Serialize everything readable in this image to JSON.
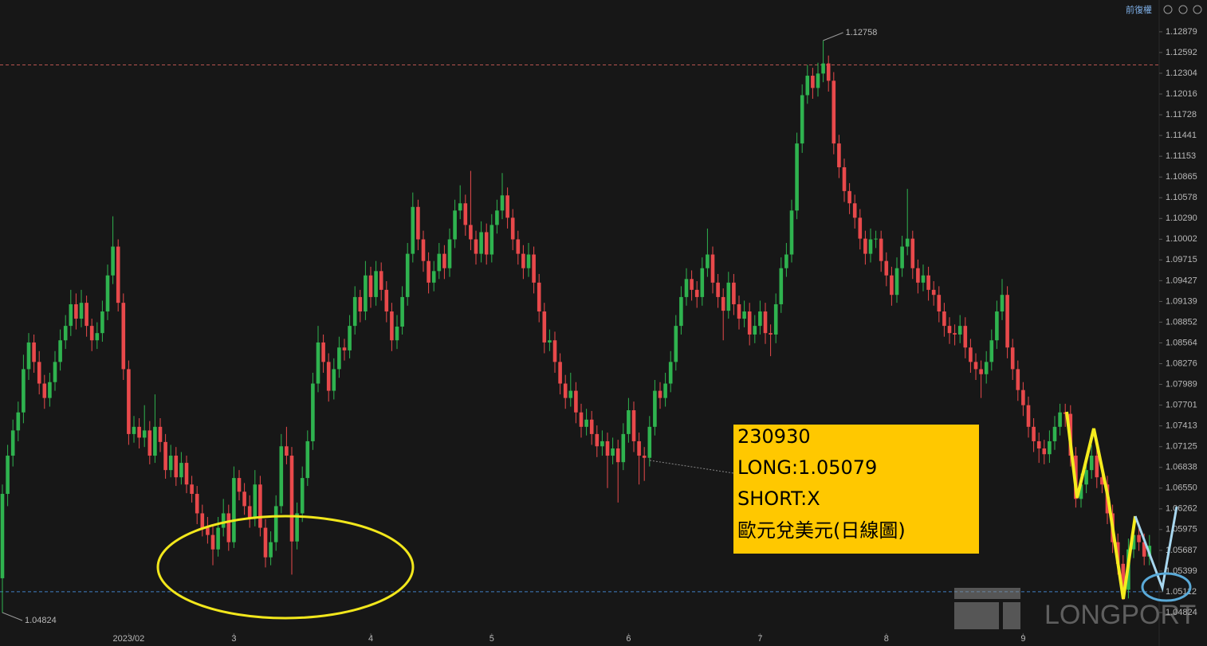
{
  "chart_data": {
    "type": "candlestick",
    "toolbar_label": "前復權",
    "ylim": [
      1.0436,
      1.1332
    ],
    "yticks": [
      1.12879,
      1.12592,
      1.12304,
      1.12016,
      1.11728,
      1.11441,
      1.11153,
      1.10865,
      1.10578,
      {
        "value": 1.1029,
        "label": "1.10290"
      },
      1.10002,
      1.09715,
      1.09427,
      1.09139,
      1.08852,
      1.08564,
      1.08276,
      1.07989,
      1.07701,
      1.07413,
      1.07125,
      1.06838,
      {
        "value": 1.0655,
        "label": "1.06550"
      },
      1.06262,
      1.05975,
      1.05687,
      1.05399,
      1.05112,
      1.04824
    ],
    "x_labels": [
      {
        "index": 24,
        "label": "2023/02"
      },
      {
        "index": 44,
        "label": "3"
      },
      {
        "index": 70,
        "label": "4"
      },
      {
        "index": 93,
        "label": "5"
      },
      {
        "index": 119,
        "label": "6"
      },
      {
        "index": 144,
        "label": "7"
      },
      {
        "index": 168,
        "label": "8"
      },
      {
        "index": 194,
        "label": "9"
      }
    ],
    "up_color": "#2fb34f",
    "down_color": "#e8494b",
    "hlines": [
      {
        "value": 1.1242,
        "color": "#b85450"
      },
      {
        "value": 1.05112,
        "color": "#3f7fc4"
      }
    ],
    "extremes": [
      {
        "index": 156,
        "value": 1.12758
      },
      {
        "index": 0,
        "value": 1.04824
      }
    ],
    "note": [
      "230930",
      "LONG:1.05079",
      "SHORT:X",
      "歐元兌美元(日線圖)"
    ],
    "watermark": "LONGPORT",
    "candles": [
      [
        1.053,
        1.066,
        1.0482,
        1.0647
      ],
      [
        1.0647,
        1.0715,
        1.063,
        1.07
      ],
      [
        1.07,
        1.075,
        1.0685,
        1.0735
      ],
      [
        1.0735,
        1.0775,
        1.072,
        1.076
      ],
      [
        1.076,
        1.084,
        1.0745,
        1.082
      ],
      [
        1.082,
        1.087,
        1.0805,
        1.0857
      ],
      [
        1.0857,
        1.0868,
        1.0815,
        1.083
      ],
      [
        1.083,
        1.0845,
        1.0785,
        1.08
      ],
      [
        1.08,
        1.0812,
        1.0765,
        1.078
      ],
      [
        1.078,
        1.0815,
        1.0768,
        1.0802
      ],
      [
        1.0802,
        1.0845,
        1.079,
        1.083
      ],
      [
        1.083,
        1.0875,
        1.0818,
        1.086
      ],
      [
        1.086,
        1.0895,
        1.0848,
        1.088
      ],
      [
        1.088,
        1.093,
        1.0866,
        1.091
      ],
      [
        1.091,
        1.0925,
        1.0875,
        1.089
      ],
      [
        1.089,
        1.093,
        1.0878,
        1.0912
      ],
      [
        1.0912,
        1.0922,
        1.0865,
        1.088
      ],
      [
        1.088,
        1.089,
        1.0845,
        1.086
      ],
      [
        1.086,
        1.0885,
        1.0848,
        1.087
      ],
      [
        1.087,
        1.0915,
        1.0858,
        1.09
      ],
      [
        1.09,
        1.0965,
        1.0888,
        1.095
      ],
      [
        1.095,
        1.1032,
        1.0938,
        1.099
      ],
      [
        1.099,
        1.1,
        1.09,
        1.0912
      ],
      [
        1.0912,
        1.0925,
        1.0805,
        1.082
      ],
      [
        1.082,
        1.0832,
        1.0715,
        1.073
      ],
      [
        1.073,
        1.0755,
        1.0718,
        1.074
      ],
      [
        1.074,
        1.0752,
        1.071,
        1.0725
      ],
      [
        1.0725,
        1.077,
        1.0712,
        1.0735
      ],
      [
        1.0735,
        1.0748,
        1.0688,
        1.07
      ],
      [
        1.07,
        1.0785,
        1.069,
        1.074
      ],
      [
        1.074,
        1.0752,
        1.0705,
        1.0719
      ],
      [
        1.0719,
        1.073,
        1.0668,
        1.068
      ],
      [
        1.068,
        1.0715,
        1.067,
        1.07
      ],
      [
        1.07,
        1.0712,
        1.0658,
        1.067
      ],
      [
        1.067,
        1.0705,
        1.066,
        1.069
      ],
      [
        1.069,
        1.07,
        1.0648,
        1.066
      ],
      [
        1.066,
        1.0672,
        1.0635,
        1.0647
      ],
      [
        1.0647,
        1.0658,
        1.0605,
        1.062
      ],
      [
        1.062,
        1.0632,
        1.0588,
        1.06
      ],
      [
        1.06,
        1.0615,
        1.0578,
        1.059
      ],
      [
        1.059,
        1.0602,
        1.0548,
        1.057
      ],
      [
        1.057,
        1.0615,
        1.056,
        1.06
      ],
      [
        1.06,
        1.064,
        1.0588,
        1.062
      ],
      [
        1.062,
        1.0632,
        1.0568,
        1.058
      ],
      [
        1.058,
        1.0685,
        1.0572,
        1.0669
      ],
      [
        1.0669,
        1.068,
        1.0638,
        1.065
      ],
      [
        1.065,
        1.0662,
        1.0618,
        1.063
      ],
      [
        1.063,
        1.0645,
        1.06,
        1.0614
      ],
      [
        1.0614,
        1.068,
        1.0602,
        1.066
      ],
      [
        1.066,
        1.0672,
        1.0588,
        1.06
      ],
      [
        1.06,
        1.0612,
        1.0545,
        1.0559
      ],
      [
        1.0559,
        1.0595,
        1.0548,
        1.058
      ],
      [
        1.058,
        1.0645,
        1.0568,
        1.063
      ],
      [
        1.063,
        1.073,
        1.062,
        1.0713
      ],
      [
        1.0713,
        1.074,
        1.0688,
        1.07
      ],
      [
        1.07,
        1.0712,
        1.0535,
        1.0581
      ],
      [
        1.0581,
        1.0635,
        1.057,
        1.062
      ],
      [
        1.062,
        1.0685,
        1.0608,
        1.0669
      ],
      [
        1.0669,
        1.0735,
        1.0658,
        1.072
      ],
      [
        1.072,
        1.0815,
        1.0708,
        1.08
      ],
      [
        1.08,
        1.088,
        1.0788,
        1.0857
      ],
      [
        1.0857,
        1.0868,
        1.0815,
        1.083
      ],
      [
        1.083,
        1.0842,
        1.0775,
        1.079
      ],
      [
        1.079,
        1.0835,
        1.0778,
        1.082
      ],
      [
        1.082,
        1.0865,
        1.0808,
        1.085
      ],
      [
        1.085,
        1.0862,
        1.0832,
        1.0846
      ],
      [
        1.0846,
        1.0895,
        1.0835,
        1.088
      ],
      [
        1.088,
        1.0935,
        1.0868,
        1.092
      ],
      [
        1.092,
        1.093,
        1.0885,
        1.09
      ],
      [
        1.09,
        1.097,
        1.0888,
        1.095
      ],
      [
        1.095,
        1.0962,
        1.0905,
        1.092
      ],
      [
        1.092,
        1.097,
        1.0908,
        1.0956
      ],
      [
        1.0956,
        1.0968,
        1.0915,
        1.093
      ],
      [
        1.093,
        1.0942,
        1.0885,
        1.09
      ],
      [
        1.09,
        1.0912,
        1.0845,
        1.086
      ],
      [
        1.086,
        1.0895,
        1.0848,
        1.0879
      ],
      [
        1.0879,
        1.0935,
        1.0868,
        1.092
      ],
      [
        1.092,
        1.0995,
        1.0908,
        1.098
      ],
      [
        1.098,
        1.1065,
        1.0968,
        1.1045
      ],
      [
        1.1045,
        1.1055,
        1.0985,
        1.1
      ],
      [
        1.1,
        1.1012,
        1.0955,
        1.097
      ],
      [
        1.097,
        1.0982,
        1.0925,
        1.094
      ],
      [
        1.094,
        1.097,
        1.0928,
        1.0956
      ],
      [
        1.0956,
        1.0995,
        1.0945,
        1.098
      ],
      [
        1.098,
        1.0992,
        1.0945,
        1.096
      ],
      [
        1.096,
        1.1015,
        1.0948,
        1.1
      ],
      [
        1.1,
        1.1055,
        1.0988,
        1.104
      ],
      [
        1.104,
        1.1075,
        1.1028,
        1.105
      ],
      [
        1.105,
        1.1062,
        1.1005,
        1.102
      ],
      [
        1.102,
        1.1095,
        1.0985,
        1.1
      ],
      [
        1.1,
        1.1012,
        1.0965,
        1.098
      ],
      [
        1.098,
        1.1025,
        1.0968,
        1.101
      ],
      [
        1.101,
        1.1022,
        1.0965,
        1.0979
      ],
      [
        1.0979,
        1.1035,
        1.0968,
        1.102
      ],
      [
        1.102,
        1.1055,
        1.1008,
        1.104
      ],
      [
        1.104,
        1.1092,
        1.1028,
        1.1061
      ],
      [
        1.1061,
        1.1072,
        1.1015,
        1.103
      ],
      [
        1.103,
        1.1042,
        1.0985,
        1.1
      ],
      [
        1.1,
        1.1012,
        1.0965,
        1.098
      ],
      [
        1.098,
        1.0992,
        1.0945,
        1.096
      ],
      [
        1.096,
        1.0995,
        1.0948,
        1.0979
      ],
      [
        1.0979,
        1.099,
        1.0925,
        1.094
      ],
      [
        1.094,
        1.0952,
        1.0885,
        1.09
      ],
      [
        1.09,
        1.0912,
        1.0842,
        1.0857
      ],
      [
        1.0857,
        1.0875,
        1.0845,
        1.086
      ],
      [
        1.086,
        1.0872,
        1.0815,
        1.083
      ],
      [
        1.083,
        1.0842,
        1.0785,
        1.08
      ],
      [
        1.08,
        1.0812,
        1.0765,
        1.078
      ],
      [
        1.078,
        1.0815,
        1.0768,
        1.079
      ],
      [
        1.079,
        1.0802,
        1.0745,
        1.076
      ],
      [
        1.076,
        1.0772,
        1.0725,
        1.074
      ],
      [
        1.074,
        1.0765,
        1.0728,
        1.075
      ],
      [
        1.075,
        1.0762,
        1.0715,
        1.073
      ],
      [
        1.073,
        1.0742,
        1.0698,
        1.0713
      ],
      [
        1.0713,
        1.0735,
        1.07,
        1.072
      ],
      [
        1.072,
        1.0732,
        1.0655,
        1.07
      ],
      [
        1.07,
        1.0725,
        1.0688,
        1.071
      ],
      [
        1.071,
        1.0722,
        1.0635,
        1.0691
      ],
      [
        1.0691,
        1.0745,
        1.068,
        1.073
      ],
      [
        1.073,
        1.078,
        1.0718,
        1.0763
      ],
      [
        1.0763,
        1.0775,
        1.0705,
        1.072
      ],
      [
        1.072,
        1.0732,
        1.066,
        1.07
      ],
      [
        1.07,
        1.0712,
        1.0665,
        1.0697
      ],
      [
        1.0697,
        1.0755,
        1.0685,
        1.074
      ],
      [
        1.074,
        1.0805,
        1.0728,
        1.079
      ],
      [
        1.079,
        1.0802,
        1.0765,
        1.078
      ],
      [
        1.078,
        1.0815,
        1.0768,
        1.08
      ],
      [
        1.08,
        1.0845,
        1.0788,
        1.083
      ],
      [
        1.083,
        1.0895,
        1.0818,
        1.088
      ],
      [
        1.088,
        1.0935,
        1.0868,
        1.092
      ],
      [
        1.092,
        1.096,
        1.0908,
        1.0945
      ],
      [
        1.0945,
        1.0957,
        1.0915,
        1.093
      ],
      [
        1.093,
        1.0942,
        1.0905,
        1.092
      ],
      [
        1.092,
        1.0975,
        1.0908,
        1.096
      ],
      [
        1.096,
        1.1015,
        1.0948,
        1.0979
      ],
      [
        1.0979,
        1.099,
        1.0925,
        1.094
      ],
      [
        1.094,
        1.0952,
        1.0905,
        1.092
      ],
      [
        1.092,
        1.0932,
        1.086,
        1.0901
      ],
      [
        1.0901,
        1.0955,
        1.089,
        1.094
      ],
      [
        1.094,
        1.0952,
        1.0895,
        1.091
      ],
      [
        1.091,
        1.0922,
        1.0875,
        1.089
      ],
      [
        1.089,
        1.0915,
        1.0878,
        1.09
      ],
      [
        1.09,
        1.0912,
        1.0853,
        1.0868
      ],
      [
        1.0868,
        1.0895,
        1.0856,
        1.088
      ],
      [
        1.088,
        1.0915,
        1.0868,
        1.09
      ],
      [
        1.09,
        1.0912,
        1.0855,
        1.087
      ],
      [
        1.087,
        1.0882,
        1.0838,
        1.0868
      ],
      [
        1.0868,
        1.0925,
        1.0856,
        1.091
      ],
      [
        1.091,
        1.0975,
        1.0898,
        1.096
      ],
      [
        1.096,
        1.0995,
        1.0948,
        1.0979
      ],
      [
        1.0979,
        1.1055,
        1.0968,
        1.104
      ],
      [
        1.104,
        1.1148,
        1.1028,
        1.1133
      ],
      [
        1.1133,
        1.1215,
        1.112,
        1.12
      ],
      [
        1.12,
        1.1242,
        1.1188,
        1.1227
      ],
      [
        1.1227,
        1.1238,
        1.1195,
        1.121
      ],
      [
        1.121,
        1.1245,
        1.1198,
        1.123
      ],
      [
        1.123,
        1.1276,
        1.1218,
        1.1244
      ],
      [
        1.1244,
        1.1255,
        1.1205,
        1.122
      ],
      [
        1.122,
        1.1232,
        1.1118,
        1.1133
      ],
      [
        1.1133,
        1.1145,
        1.1085,
        1.11
      ],
      [
        1.11,
        1.1112,
        1.1052,
        1.1067
      ],
      [
        1.1067,
        1.1078,
        1.1035,
        1.105
      ],
      [
        1.105,
        1.1062,
        1.1015,
        1.103
      ],
      [
        1.103,
        1.1042,
        1.0986,
        1.1001
      ],
      [
        1.1001,
        1.1012,
        1.0965,
        1.098
      ],
      [
        1.098,
        1.1015,
        1.0968,
        1.1
      ],
      [
        1.1,
        1.1012,
        1.0988,
        1.1001
      ],
      [
        1.1001,
        1.1012,
        1.0955,
        1.097
      ],
      [
        1.097,
        1.0982,
        1.0935,
        1.095
      ],
      [
        1.095,
        1.0962,
        1.0908,
        1.0923
      ],
      [
        1.0923,
        1.0975,
        1.0912,
        1.096
      ],
      [
        1.096,
        1.1005,
        1.0948,
        1.099
      ],
      [
        1.099,
        1.107,
        1.0978,
        1.1001
      ],
      [
        1.1001,
        1.1012,
        1.0945,
        1.096
      ],
      [
        1.096,
        1.0972,
        1.0925,
        1.094
      ],
      [
        1.094,
        1.0965,
        1.0928,
        1.095
      ],
      [
        1.095,
        1.0962,
        1.0915,
        1.093
      ],
      [
        1.093,
        1.0942,
        1.0908,
        1.0923
      ],
      [
        1.0923,
        1.0935,
        1.0885,
        1.09
      ],
      [
        1.09,
        1.0912,
        1.0865,
        1.088
      ],
      [
        1.088,
        1.0892,
        1.0855,
        1.087
      ],
      [
        1.087,
        1.0882,
        1.0853,
        1.0868
      ],
      [
        1.0868,
        1.0895,
        1.0856,
        1.088
      ],
      [
        1.088,
        1.0892,
        1.0835,
        1.085
      ],
      [
        1.085,
        1.0862,
        1.0815,
        1.083
      ],
      [
        1.083,
        1.0842,
        1.0805,
        1.082
      ],
      [
        1.082,
        1.0832,
        1.078,
        1.0813
      ],
      [
        1.0813,
        1.0845,
        1.08,
        1.083
      ],
      [
        1.083,
        1.0875,
        1.0818,
        1.086
      ],
      [
        1.086,
        1.0915,
        1.0848,
        1.09
      ],
      [
        1.09,
        1.0945,
        1.0888,
        1.0923
      ],
      [
        1.0923,
        1.0935,
        1.0835,
        1.085
      ],
      [
        1.085,
        1.0862,
        1.0805,
        1.082
      ],
      [
        1.082,
        1.0832,
        1.0776,
        1.0791
      ],
      [
        1.0791,
        1.0802,
        1.0755,
        1.077
      ],
      [
        1.077,
        1.0782,
        1.0725,
        1.074
      ],
      [
        1.074,
        1.0752,
        1.0705,
        1.072
      ],
      [
        1.072,
        1.0732,
        1.069,
        1.071
      ],
      [
        1.071,
        1.0722,
        1.0688,
        1.0702
      ],
      [
        1.0702,
        1.0735,
        1.069,
        1.072
      ],
      [
        1.072,
        1.0755,
        1.0708,
        1.074
      ],
      [
        1.074,
        1.0772,
        1.0728,
        1.076
      ],
      [
        1.076,
        1.0772,
        1.074,
        1.0758
      ],
      [
        1.0758,
        1.077,
        1.0685,
        1.07
      ],
      [
        1.07,
        1.0712,
        1.0628,
        1.064
      ],
      [
        1.064,
        1.0675,
        1.0628,
        1.066
      ],
      [
        1.066,
        1.0695,
        1.0648,
        1.068
      ],
      [
        1.068,
        1.0715,
        1.0668,
        1.07
      ],
      [
        1.07,
        1.0712,
        1.0655,
        1.067
      ],
      [
        1.067,
        1.0682,
        1.0648,
        1.066
      ],
      [
        1.066,
        1.0672,
        1.0605,
        1.062
      ],
      [
        1.062,
        1.0632,
        1.0565,
        1.058
      ],
      [
        1.058,
        1.0592,
        1.0535,
        1.055
      ],
      [
        1.055,
        1.0562,
        1.05,
        1.0514
      ],
      [
        1.0514,
        1.0585,
        1.0502,
        1.057
      ],
      [
        1.057,
        1.0605,
        1.0558,
        1.059
      ],
      [
        1.059,
        1.0602,
        1.0568,
        1.058
      ],
      [
        1.058,
        1.0592,
        1.0548,
        1.056
      ],
      [
        1.056,
        1.059,
        1.0548,
        1.0575
      ]
    ]
  }
}
